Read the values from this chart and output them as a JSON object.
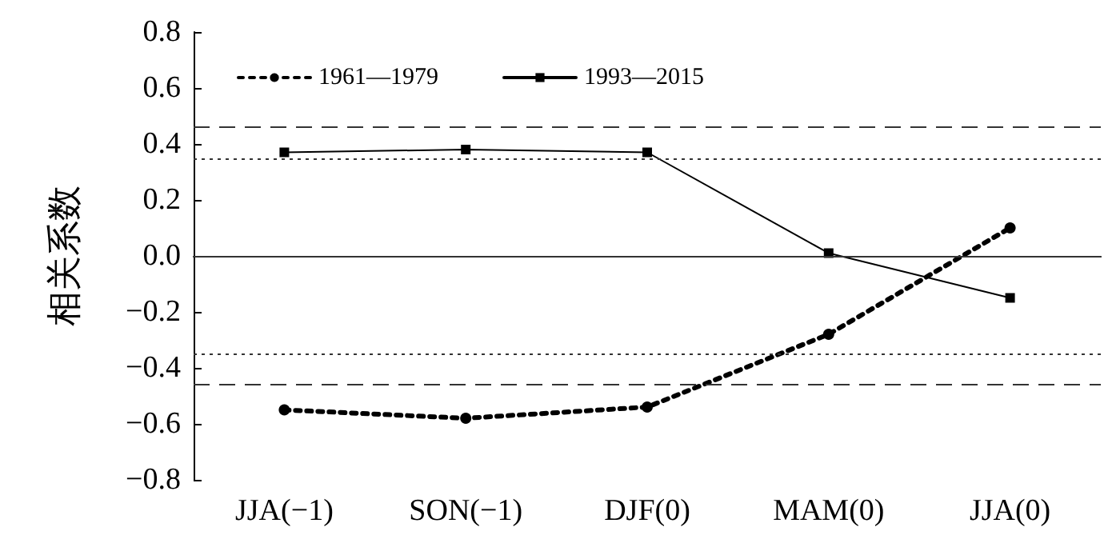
{
  "chart_data": {
    "type": "line",
    "ylabel": "相关系数",
    "categories": [
      "JJA(−1)",
      "SON(−1)",
      "DJF(0)",
      "MAM(0)",
      "JJA(0)"
    ],
    "series": [
      {
        "name": "1961—1979",
        "color": "#000000",
        "values": [
          -0.55,
          -0.58,
          -0.54,
          -0.28,
          0.1
        ],
        "line_style": "dotted",
        "marker": "circle"
      },
      {
        "name": "1993—2015",
        "color": "#000000",
        "values": [
          0.37,
          0.38,
          0.37,
          0.01,
          -0.15
        ],
        "line_style": "solid",
        "marker": "square"
      }
    ],
    "ylim": [
      -0.8,
      0.8
    ],
    "yticks": [
      -0.8,
      -0.6,
      -0.4,
      -0.2,
      {
        "value": 0,
        "label": "0.0"
      },
      0.2,
      0.4,
      0.6,
      0.8
    ],
    "ref_lines": [
      {
        "axis": "y",
        "value": 0.46,
        "line_style": "dashed",
        "color": "#333333"
      },
      {
        "axis": "y",
        "value": -0.46,
        "line_style": "dashed",
        "color": "#333333"
      },
      {
        "axis": "y",
        "value": 0.35,
        "line_style": "dotted",
        "color": "#333333"
      },
      {
        "axis": "y",
        "value": -0.35,
        "line_style": "dotted",
        "color": "#333333"
      },
      {
        "axis": "y",
        "value": 0,
        "line_style": "solid",
        "color": "#333333"
      }
    ],
    "grid": false,
    "legend": "top left"
  }
}
